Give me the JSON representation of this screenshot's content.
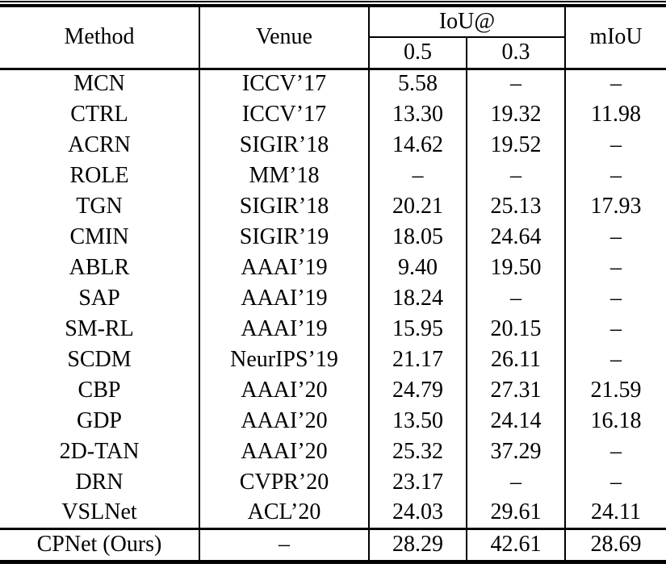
{
  "table": {
    "header": {
      "method": "Method",
      "venue": "Venue",
      "iou_group": "IoU@",
      "iou_0_5": "0.5",
      "iou_0_3": "0.3",
      "miou": "mIoU"
    },
    "rows": [
      {
        "method": "MCN",
        "venue": "ICCV’17",
        "iou_0_5": "5.58",
        "iou_0_3": "–",
        "miou": "–"
      },
      {
        "method": "CTRL",
        "venue": "ICCV’17",
        "iou_0_5": "13.30",
        "iou_0_3": "19.32",
        "miou": "11.98"
      },
      {
        "method": "ACRN",
        "venue": "SIGIR’18",
        "iou_0_5": "14.62",
        "iou_0_3": "19.52",
        "miou": "–"
      },
      {
        "method": "ROLE",
        "venue": "MM’18",
        "iou_0_5": "–",
        "iou_0_3": "–",
        "miou": "–"
      },
      {
        "method": "TGN",
        "venue": "SIGIR’18",
        "iou_0_5": "20.21",
        "iou_0_3": "25.13",
        "miou": "17.93"
      },
      {
        "method": "CMIN",
        "venue": "SIGIR’19",
        "iou_0_5": "18.05",
        "iou_0_3": "24.64",
        "miou": "–"
      },
      {
        "method": "ABLR",
        "venue": "AAAI’19",
        "iou_0_5": "9.40",
        "iou_0_3": "19.50",
        "miou": "–"
      },
      {
        "method": "SAP",
        "venue": "AAAI’19",
        "iou_0_5": "18.24",
        "iou_0_3": "–",
        "miou": "–"
      },
      {
        "method": "SM-RL",
        "venue": "AAAI’19",
        "iou_0_5": "15.95",
        "iou_0_3": "20.15",
        "miou": "–"
      },
      {
        "method": "SCDM",
        "venue": "NeurIPS’19",
        "iou_0_5": "21.17",
        "iou_0_3": "26.11",
        "miou": "–"
      },
      {
        "method": "CBP",
        "venue": "AAAI’20",
        "iou_0_5": "24.79",
        "iou_0_3": "27.31",
        "miou": "21.59"
      },
      {
        "method": "GDP",
        "venue": "AAAI’20",
        "iou_0_5": "13.50",
        "iou_0_3": "24.14",
        "miou": "16.18"
      },
      {
        "method": "2D-TAN",
        "venue": "AAAI’20",
        "iou_0_5": "25.32",
        "iou_0_3": "37.29",
        "miou": "–"
      },
      {
        "method": "DRN",
        "venue": "CVPR’20",
        "iou_0_5": "23.17",
        "iou_0_3": "–",
        "miou": "–"
      },
      {
        "method": "VSLNet",
        "venue": "ACL’20",
        "iou_0_5": "24.03",
        "iou_0_3": "29.61",
        "miou": "24.11"
      },
      {
        "method": "CPNet (Ours)",
        "venue": "–",
        "iou_0_5": "28.29",
        "iou_0_3": "42.61",
        "miou": "28.69"
      }
    ]
  },
  "colors": {
    "text": "#000000",
    "background": "#ffffff",
    "rule": "#000000"
  }
}
